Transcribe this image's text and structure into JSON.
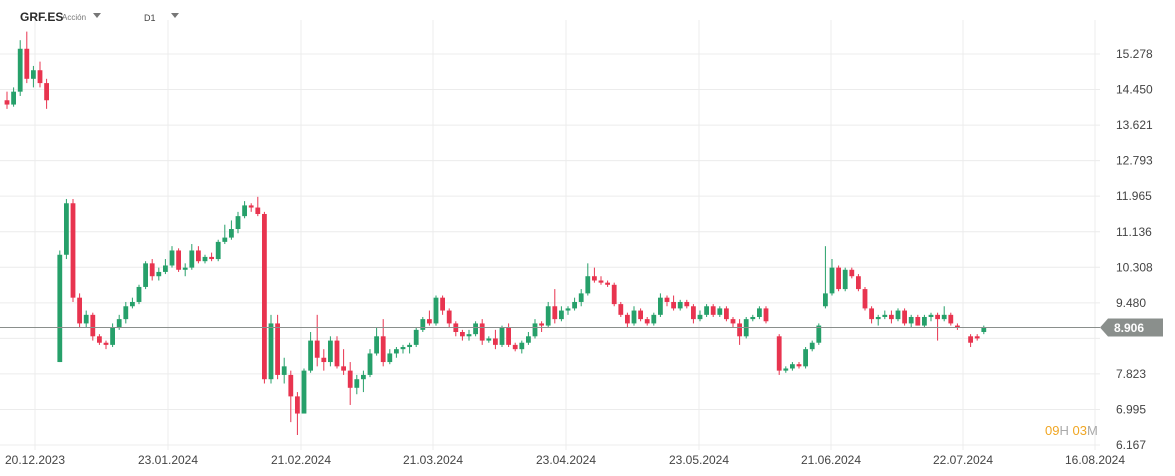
{
  "toolbar": {
    "symbol": "GRF.ES",
    "instrument_type": "Acción",
    "timeframe": "D1",
    "type_icon": "chevron-down-icon",
    "timeframe_icon": "chevron-down-icon"
  },
  "countdown": {
    "hours": "09",
    "hours_unit": "H",
    "minutes": "03",
    "minutes_unit": "M"
  },
  "colors": {
    "up": "#26a06a",
    "down": "#e8344f",
    "price_line": "#8a8f8c",
    "price_label_bg": "#8a8f8c",
    "countdown": "#f0a623"
  },
  "chart_data": {
    "type": "candlestick",
    "symbol": "GRF.ES",
    "timeframe": "D1",
    "ylim": [
      6.167,
      15.8
    ],
    "y_ticks": [
      6.167,
      6.995,
      7.823,
      8.652,
      9.48,
      10.308,
      11.136,
      11.965,
      12.793,
      13.621,
      14.45,
      15.278
    ],
    "y_tick_labels": [
      "6.167",
      "6.995",
      "7.823",
      "8.652",
      "9.480",
      "10.308",
      "11.136",
      "11.965",
      "12.793",
      "13.621",
      "14.450",
      "15.278"
    ],
    "x_tick_labels": [
      "20.12.2023",
      "23.01.2024",
      "21.02.2024",
      "21.03.2024",
      "23.04.2024",
      "23.05.2024",
      "21.06.2024",
      "22.07.2024",
      "16.08.2024"
    ],
    "current_price": 8.906,
    "current_price_label": "8.906",
    "grid": true,
    "candles": [
      [
        14.2,
        14.4,
        14.0,
        14.1
      ],
      [
        14.1,
        14.5,
        14.05,
        14.4
      ],
      [
        14.4,
        15.6,
        14.3,
        15.4
      ],
      [
        15.4,
        15.8,
        14.6,
        14.7
      ],
      [
        14.7,
        15.0,
        14.5,
        14.9
      ],
      [
        14.9,
        15.1,
        14.5,
        14.6
      ],
      [
        14.6,
        14.7,
        14.0,
        14.2
      ],
      [
        null,
        null,
        null,
        null
      ],
      [
        8.1,
        10.7,
        8.1,
        10.6
      ],
      [
        10.6,
        11.9,
        10.5,
        11.8
      ],
      [
        11.8,
        11.9,
        9.5,
        9.6
      ],
      [
        9.6,
        9.7,
        8.9,
        9.0
      ],
      [
        9.0,
        9.3,
        8.9,
        9.2
      ],
      [
        9.2,
        9.25,
        8.6,
        8.7
      ],
      [
        8.7,
        8.75,
        8.5,
        8.55
      ],
      [
        8.55,
        8.6,
        8.4,
        8.5
      ],
      [
        8.5,
        9.0,
        8.45,
        8.9
      ],
      [
        8.9,
        9.2,
        8.85,
        9.1
      ],
      [
        9.1,
        9.5,
        9.0,
        9.4
      ],
      [
        9.4,
        9.6,
        9.35,
        9.5
      ],
      [
        9.5,
        9.9,
        9.45,
        9.85
      ],
      [
        9.85,
        10.45,
        9.8,
        10.4
      ],
      [
        10.4,
        10.5,
        10.0,
        10.1
      ],
      [
        10.1,
        10.3,
        10.0,
        10.2
      ],
      [
        10.2,
        10.5,
        10.15,
        10.35
      ],
      [
        10.35,
        10.8,
        10.3,
        10.7
      ],
      [
        10.7,
        10.75,
        10.2,
        10.25
      ],
      [
        10.25,
        10.4,
        10.1,
        10.3
      ],
      [
        10.3,
        10.85,
        10.25,
        10.7
      ],
      [
        10.7,
        10.8,
        10.4,
        10.45
      ],
      [
        10.45,
        10.6,
        10.4,
        10.55
      ],
      [
        10.55,
        10.65,
        10.45,
        10.5
      ],
      [
        10.5,
        10.95,
        10.45,
        10.9
      ],
      [
        10.9,
        11.3,
        10.85,
        11.0
      ],
      [
        11.0,
        11.4,
        10.95,
        11.2
      ],
      [
        11.2,
        11.6,
        11.1,
        11.5
      ],
      [
        11.5,
        11.85,
        11.45,
        11.75
      ],
      [
        11.75,
        11.8,
        11.6,
        11.7
      ],
      [
        11.7,
        11.95,
        11.5,
        11.55
      ],
      [
        11.55,
        11.6,
        7.6,
        7.7
      ],
      [
        7.7,
        9.2,
        7.6,
        9.0
      ],
      [
        9.0,
        9.2,
        7.7,
        7.8
      ],
      [
        7.8,
        8.2,
        7.6,
        8.0
      ],
      [
        7.8,
        7.9,
        6.7,
        7.3
      ],
      [
        7.3,
        7.4,
        6.4,
        6.9
      ],
      [
        6.9,
        7.95,
        6.9,
        7.9
      ],
      [
        7.9,
        8.8,
        7.85,
        8.6
      ],
      [
        8.6,
        9.2,
        8.0,
        8.2
      ],
      [
        8.2,
        8.4,
        7.9,
        8.1
      ],
      [
        8.1,
        8.7,
        8.0,
        8.6
      ],
      [
        8.6,
        8.7,
        7.95,
        8.0
      ],
      [
        8.0,
        8.4,
        7.8,
        7.9
      ],
      [
        7.9,
        8.1,
        7.1,
        7.5
      ],
      [
        7.5,
        7.8,
        7.35,
        7.7
      ],
      [
        7.7,
        7.9,
        7.4,
        7.8
      ],
      [
        7.8,
        8.4,
        7.75,
        8.3
      ],
      [
        8.3,
        8.9,
        8.25,
        8.7
      ],
      [
        8.7,
        9.1,
        8.0,
        8.1
      ],
      [
        8.1,
        8.4,
        8.05,
        8.3
      ],
      [
        8.3,
        8.45,
        8.2,
        8.4
      ],
      [
        8.4,
        8.5,
        8.3,
        8.45
      ],
      [
        8.45,
        8.55,
        8.3,
        8.5
      ],
      [
        8.5,
        8.9,
        8.45,
        8.85
      ],
      [
        8.85,
        9.15,
        8.8,
        9.1
      ],
      [
        9.1,
        9.3,
        8.95,
        9.0
      ],
      [
        9.0,
        9.65,
        8.95,
        9.6
      ],
      [
        9.6,
        9.65,
        9.2,
        9.3
      ],
      [
        9.3,
        9.35,
        8.9,
        9.0
      ],
      [
        9.0,
        9.05,
        8.7,
        8.8
      ],
      [
        8.8,
        8.85,
        8.6,
        8.7
      ],
      [
        8.7,
        8.85,
        8.6,
        8.75
      ],
      [
        8.75,
        9.05,
        8.7,
        9.0
      ],
      [
        9.0,
        9.1,
        8.5,
        8.6
      ],
      [
        8.6,
        8.7,
        8.55,
        8.65
      ],
      [
        8.65,
        8.85,
        8.4,
        8.5
      ],
      [
        8.5,
        8.95,
        8.45,
        8.9
      ],
      [
        8.9,
        9.0,
        8.45,
        8.5
      ],
      [
        8.5,
        8.55,
        8.35,
        8.4
      ],
      [
        8.4,
        8.6,
        8.3,
        8.55
      ],
      [
        8.55,
        8.8,
        8.5,
        8.7
      ],
      [
        8.7,
        9.1,
        8.65,
        9.0
      ],
      [
        9.0,
        9.05,
        8.8,
        8.95
      ],
      [
        8.95,
        9.5,
        8.9,
        9.4
      ],
      [
        9.4,
        9.8,
        9.0,
        9.1
      ],
      [
        9.1,
        9.4,
        9.05,
        9.3
      ],
      [
        9.3,
        9.4,
        9.2,
        9.35
      ],
      [
        9.35,
        9.6,
        9.3,
        9.5
      ],
      [
        9.5,
        9.8,
        9.4,
        9.7
      ],
      [
        9.7,
        10.4,
        9.65,
        10.1
      ],
      [
        10.1,
        10.3,
        9.95,
        10.0
      ],
      [
        10.0,
        10.1,
        9.9,
        9.95
      ],
      [
        9.95,
        10.0,
        9.85,
        9.9
      ],
      [
        9.9,
        9.95,
        9.4,
        9.45
      ],
      [
        9.45,
        9.5,
        9.15,
        9.2
      ],
      [
        9.2,
        9.25,
        8.9,
        9.0
      ],
      [
        9.0,
        9.4,
        8.95,
        9.3
      ],
      [
        9.3,
        9.35,
        9.05,
        9.1
      ],
      [
        9.1,
        9.15,
        8.95,
        9.0
      ],
      [
        9.0,
        9.25,
        8.95,
        9.2
      ],
      [
        9.2,
        9.7,
        9.15,
        9.6
      ],
      [
        9.6,
        9.65,
        9.4,
        9.5
      ],
      [
        9.5,
        9.65,
        9.3,
        9.35
      ],
      [
        9.35,
        9.55,
        9.3,
        9.5
      ],
      [
        9.5,
        9.55,
        9.35,
        9.4
      ],
      [
        9.4,
        9.45,
        9.0,
        9.1
      ],
      [
        9.1,
        9.3,
        9.05,
        9.2
      ],
      [
        9.2,
        9.45,
        9.15,
        9.4
      ],
      [
        9.4,
        9.45,
        9.15,
        9.2
      ],
      [
        9.2,
        9.4,
        9.15,
        9.35
      ],
      [
        9.35,
        9.4,
        9.05,
        9.1
      ],
      [
        9.1,
        9.15,
        8.9,
        9.0
      ],
      [
        9.0,
        9.1,
        8.5,
        8.7
      ],
      [
        8.7,
        9.15,
        8.65,
        9.1
      ],
      [
        9.1,
        9.2,
        9.05,
        9.15
      ],
      [
        9.15,
        9.4,
        9.1,
        9.35
      ],
      [
        9.35,
        9.4,
        9.0,
        9.05
      ],
      [
        null,
        null,
        null,
        null
      ],
      [
        8.7,
        8.75,
        7.8,
        7.9
      ],
      [
        7.9,
        8.0,
        7.85,
        7.95
      ],
      [
        7.95,
        8.1,
        7.9,
        8.05
      ],
      [
        8.05,
        8.1,
        7.95,
        8.0
      ],
      [
        8.0,
        8.45,
        7.95,
        8.4
      ],
      [
        8.4,
        8.6,
        8.35,
        8.55
      ],
      [
        8.55,
        9.0,
        8.5,
        8.95
      ],
      [
        9.4,
        10.8,
        9.35,
        9.7
      ],
      [
        9.7,
        10.5,
        9.65,
        10.3
      ],
      [
        10.3,
        10.35,
        9.75,
        9.8
      ],
      [
        9.8,
        10.3,
        9.75,
        10.25
      ],
      [
        10.25,
        10.3,
        10.05,
        10.1
      ],
      [
        10.1,
        10.15,
        9.75,
        9.8
      ],
      [
        9.8,
        9.85,
        9.3,
        9.35
      ],
      [
        9.35,
        9.4,
        9.0,
        9.1
      ],
      [
        9.1,
        9.2,
        8.95,
        9.15
      ],
      [
        9.15,
        9.3,
        9.1,
        9.2
      ],
      [
        9.2,
        9.3,
        9.0,
        9.1
      ],
      [
        9.1,
        9.35,
        9.05,
        9.3
      ],
      [
        9.3,
        9.35,
        8.95,
        9.0
      ],
      [
        9.0,
        9.2,
        8.9,
        9.15
      ],
      [
        9.15,
        9.2,
        8.95,
        8.95
      ],
      [
        8.95,
        9.2,
        8.9,
        9.15
      ],
      [
        9.15,
        9.25,
        9.05,
        9.2
      ],
      [
        9.2,
        9.25,
        8.6,
        9.1
      ],
      [
        9.1,
        9.4,
        9.05,
        9.2
      ],
      [
        9.2,
        9.25,
        8.95,
        9.0
      ],
      [
        8.95,
        9.0,
        8.85,
        8.9
      ],
      [
        null,
        null,
        null,
        null
      ],
      [
        8.7,
        8.75,
        8.45,
        8.55
      ],
      [
        8.7,
        8.75,
        8.6,
        8.65
      ],
      [
        8.8,
        8.95,
        8.75,
        8.906
      ]
    ]
  }
}
